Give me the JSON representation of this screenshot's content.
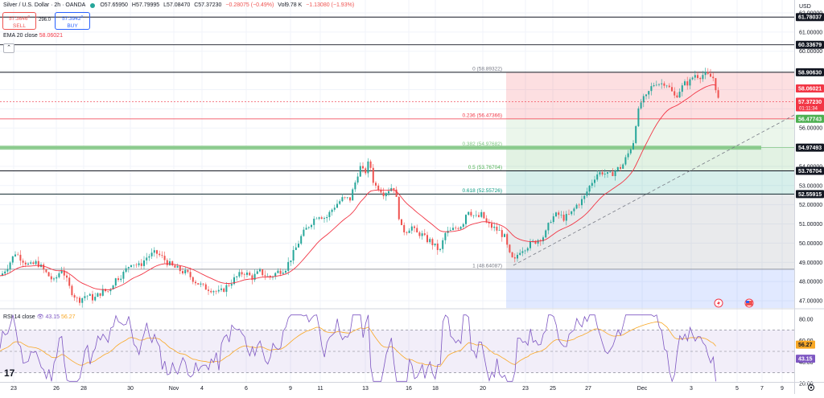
{
  "header": {
    "title": "Silver / U.S. Dollar · 2h · OANDA",
    "open": "O57.65950",
    "high": "H57.79995",
    "low": "L57.08470",
    "close": "C57.37230",
    "change": "−0.28075 (−0.49%)",
    "volume": "Vol9.78 K",
    "vol_change": "−1.13080 (−1.93%)"
  },
  "trade": {
    "sell_price": "57.3646",
    "sell_sup": "0",
    "sell_label": "SELL",
    "spread": "296.0",
    "buy_price": "57.3942",
    "buy_sup": "0",
    "buy_label": "BUY"
  },
  "ema_label": {
    "name": "EMA 20 close",
    "value": "58.06021"
  },
  "rsi_label": {
    "name": "RSI 14 close",
    "value": "43.15",
    "ma": "56.27"
  },
  "currency": "USD",
  "price_axis": [
    "62.00000",
    "61.00000",
    "60.00000",
    "59.00000",
    "58.00000",
    "57.00000",
    "56.00000",
    "55.00000",
    "54.00000",
    "53.00000",
    "52.00000",
    "51.00000",
    "50.00000",
    "49.00000",
    "48.00000",
    "47.00000"
  ],
  "price_badges": [
    {
      "value": "61.78037",
      "bg": "#131722"
    },
    {
      "value": "60.33679",
      "bg": "#131722"
    },
    {
      "value": "58.90630",
      "bg": "#131722"
    },
    {
      "value": "58.06021",
      "bg": "#f23645"
    },
    {
      "value": "57.37230",
      "bg": "#f23645"
    },
    {
      "value": "56.47743",
      "bg": "#4caf50"
    },
    {
      "value": "54.97493",
      "bg": "#131722"
    },
    {
      "value": "53.76704",
      "bg": "#131722"
    },
    {
      "value": "52.55915",
      "bg": "#131722"
    }
  ],
  "countdown": "01:11:34",
  "fib_levels": [
    {
      "label": "0 (58.89322)",
      "price": 58.89322,
      "color": "#787b86"
    },
    {
      "label": "0.236 (56.47366)",
      "price": 56.47366,
      "color": "#f23645"
    },
    {
      "label": "0.382 (54.97682)",
      "price": 54.97682,
      "color": "#81c784"
    },
    {
      "label": "0.5 (53.76704)",
      "price": 53.76704,
      "color": "#4caf50"
    },
    {
      "label": "0.618 (52.55726)",
      "price": 52.55726,
      "color": "#089981"
    },
    {
      "label": "1 (48.64087)",
      "price": 48.64087,
      "color": "#787b86"
    }
  ],
  "rsi_axis": [
    "80.00",
    "60.00",
    "40.00",
    "20.00"
  ],
  "rsi_badges": [
    {
      "value": "56.27",
      "bg": "#f9a825"
    },
    {
      "value": "43.15",
      "bg": "#7e57c2"
    }
  ],
  "time_axis": [
    "23",
    "26",
    "28",
    "30",
    "Nov",
    "4",
    "6",
    "9",
    "11",
    "13",
    "16",
    "18",
    "20",
    "23",
    "25",
    "27",
    "Dec",
    "3",
    "5",
    "7",
    "9"
  ],
  "colors": {
    "up": "#26a69a",
    "down": "#ef5350",
    "ema": "#f23645",
    "rsi": "#7e57c2",
    "rsi_ma": "#f9a825"
  },
  "chart_data": {
    "type": "candlestick",
    "symbol": "Silver / U.S. Dollar",
    "timeframe": "2h",
    "ylim": [
      46.5,
      62.3
    ],
    "horizontal_lines": [
      61.78037,
      60.33679,
      58.9063,
      54.97493,
      53.76704,
      52.55915
    ],
    "close_path": [
      [
        0,
        48.3
      ],
      [
        10,
        48.9
      ],
      [
        18,
        49.5
      ],
      [
        28,
        49.1
      ],
      [
        36,
        48.8
      ],
      [
        45,
        49.0
      ],
      [
        55,
        48.5
      ],
      [
        66,
        48.0
      ],
      [
        76,
        48.7
      ],
      [
        86,
        47.6
      ],
      [
        96,
        47.0
      ],
      [
        106,
        47.3
      ],
      [
        116,
        47.1
      ],
      [
        126,
        47.5
      ],
      [
        134,
        47.5
      ],
      [
        142,
        48.1
      ],
      [
        152,
        48.4
      ],
      [
        162,
        49.0
      ],
      [
        172,
        48.8
      ],
      [
        182,
        49.3
      ],
      [
        193,
        49.5
      ],
      [
        202,
        49.2
      ],
      [
        212,
        48.8
      ],
      [
        222,
        48.6
      ],
      [
        232,
        48.4
      ],
      [
        242,
        48.0
      ],
      [
        252,
        47.7
      ],
      [
        262,
        47.6
      ],
      [
        272,
        47.4
      ],
      [
        282,
        47.8
      ],
      [
        292,
        48.2
      ],
      [
        302,
        48.5
      ],
      [
        312,
        48.2
      ],
      [
        322,
        48.5
      ],
      [
        334,
        48.2
      ],
      [
        344,
        48.5
      ],
      [
        354,
        48.7
      ],
      [
        364,
        49.5
      ],
      [
        374,
        50.4
      ],
      [
        384,
        51.0
      ],
      [
        394,
        51.5
      ],
      [
        404,
        51.3
      ],
      [
        414,
        51.9
      ],
      [
        424,
        52.3
      ],
      [
        434,
        52.3
      ],
      [
        440,
        53.1
      ],
      [
        446,
        54.0
      ],
      [
        452,
        53.6
      ],
      [
        458,
        54.3
      ],
      [
        464,
        53.0
      ],
      [
        470,
        52.9
      ],
      [
        476,
        52.6
      ],
      [
        482,
        52.8
      ],
      [
        488,
        53.0
      ],
      [
        492,
        52.2
      ],
      [
        497,
        50.8
      ],
      [
        503,
        50.6
      ],
      [
        510,
        50.9
      ],
      [
        516,
        50.5
      ],
      [
        522,
        50.5
      ],
      [
        528,
        50.2
      ],
      [
        534,
        50.1
      ],
      [
        540,
        49.8
      ],
      [
        546,
        49.6
      ],
      [
        552,
        50.5
      ],
      [
        558,
        50.6
      ],
      [
        566,
        50.8
      ],
      [
        574,
        51.0
      ],
      [
        580,
        51.8
      ],
      [
        586,
        51.5
      ],
      [
        592,
        51.3
      ],
      [
        598,
        51.5
      ],
      [
        604,
        51.0
      ],
      [
        612,
        50.8
      ],
      [
        620,
        50.6
      ],
      [
        626,
        50.3
      ],
      [
        632,
        49.4
      ],
      [
        638,
        49.0
      ],
      [
        644,
        49.6
      ],
      [
        652,
        49.8
      ],
      [
        660,
        50.0
      ],
      [
        668,
        50.2
      ],
      [
        676,
        50.4
      ],
      [
        684,
        51.3
      ],
      [
        692,
        51.5
      ],
      [
        700,
        51.3
      ],
      [
        708,
        51.5
      ],
      [
        716,
        52.0
      ],
      [
        724,
        52.3
      ],
      [
        732,
        53.0
      ],
      [
        740,
        53.6
      ],
      [
        748,
        53.7
      ],
      [
        756,
        53.5
      ],
      [
        764,
        53.8
      ],
      [
        772,
        54.0
      ],
      [
        780,
        54.7
      ],
      [
        786,
        55.3
      ],
      [
        790,
        56.5
      ],
      [
        796,
        57.4
      ],
      [
        802,
        57.6
      ],
      [
        808,
        58.1
      ],
      [
        814,
        58.4
      ],
      [
        820,
        58.3
      ],
      [
        826,
        58.4
      ],
      [
        832,
        58.0
      ],
      [
        838,
        57.6
      ],
      [
        844,
        58.0
      ],
      [
        850,
        58.3
      ],
      [
        856,
        58.4
      ],
      [
        862,
        58.8
      ],
      [
        868,
        58.7
      ],
      [
        874,
        58.8
      ],
      [
        880,
        58.7
      ],
      [
        886,
        58.6
      ],
      [
        892,
        57.4
      ]
    ],
    "rsi_ylim": [
      0,
      100
    ]
  }
}
